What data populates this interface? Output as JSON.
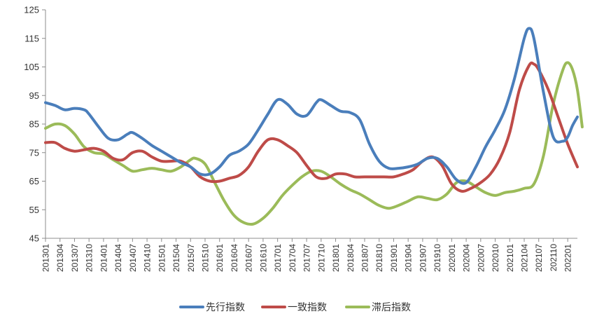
{
  "chart_data": {
    "type": "line",
    "title": "",
    "xlabel": "",
    "ylabel": "",
    "ylim": [
      45,
      125
    ],
    "yticks": [
      45,
      55,
      65,
      75,
      85,
      95,
      105,
      115,
      125
    ],
    "grid": false,
    "legend_position": "bottom",
    "x_tick_labels": [
      "201301",
      "201304",
      "201307",
      "201310",
      "201401",
      "201404",
      "201407",
      "201410",
      "201501",
      "201504",
      "201507",
      "201510",
      "201601",
      "201604",
      "201607",
      "201610",
      "201701",
      "201704",
      "201707",
      "201710",
      "201801",
      "201804",
      "201807",
      "201810",
      "201901",
      "201904",
      "201907",
      "201910",
      "202001",
      "202004",
      "202007",
      "202010",
      "202101",
      "202104",
      "202107",
      "202110",
      "202201"
    ],
    "x_start": "2013-01",
    "x_end": "2022-03",
    "series": [
      {
        "name": "先行指数",
        "color": "#4a7ebb",
        "points": [
          [
            "2013-01",
            92.5
          ],
          [
            "2013-03",
            91.5
          ],
          [
            "2013-05",
            90.0
          ],
          [
            "2013-07",
            90.5
          ],
          [
            "2013-09",
            90.0
          ],
          [
            "2013-10",
            88.5
          ],
          [
            "2013-12",
            84.0
          ],
          [
            "2014-02",
            80.0
          ],
          [
            "2014-04",
            79.5
          ],
          [
            "2014-06",
            81.5
          ],
          [
            "2014-07",
            82.0
          ],
          [
            "2014-09",
            80.0
          ],
          [
            "2014-11",
            77.5
          ],
          [
            "2015-01",
            75.5
          ],
          [
            "2015-03",
            73.5
          ],
          [
            "2015-05",
            71.5
          ],
          [
            "2015-07",
            70.0
          ],
          [
            "2015-09",
            67.5
          ],
          [
            "2015-11",
            67.5
          ],
          [
            "2016-01",
            70.0
          ],
          [
            "2016-03",
            74.0
          ],
          [
            "2016-05",
            75.5
          ],
          [
            "2016-07",
            78.0
          ],
          [
            "2016-09",
            83.0
          ],
          [
            "2016-11",
            88.5
          ],
          [
            "2017-01",
            93.5
          ],
          [
            "2017-03",
            92.0
          ],
          [
            "2017-05",
            88.5
          ],
          [
            "2017-07",
            88.0
          ],
          [
            "2017-09",
            92.5
          ],
          [
            "2017-10",
            93.5
          ],
          [
            "2017-12",
            91.5
          ],
          [
            "2018-02",
            89.5
          ],
          [
            "2018-04",
            89.0
          ],
          [
            "2018-06",
            86.5
          ],
          [
            "2018-08",
            78.0
          ],
          [
            "2018-10",
            72.0
          ],
          [
            "2018-12",
            69.5
          ],
          [
            "2019-02",
            69.5
          ],
          [
            "2019-04",
            70.0
          ],
          [
            "2019-06",
            71.0
          ],
          [
            "2019-08",
            73.0
          ],
          [
            "2019-10",
            73.0
          ],
          [
            "2019-12",
            70.0
          ],
          [
            "2020-02",
            65.5
          ],
          [
            "2020-04",
            64.5
          ],
          [
            "2020-06",
            70.0
          ],
          [
            "2020-08",
            77.0
          ],
          [
            "2020-10",
            83.0
          ],
          [
            "2020-12",
            90.0
          ],
          [
            "2021-02",
            101.0
          ],
          [
            "2021-04",
            115.0
          ],
          [
            "2021-05",
            118.5
          ],
          [
            "2021-06",
            115.0
          ],
          [
            "2021-08",
            96.0
          ],
          [
            "2021-10",
            80.5
          ],
          [
            "2021-12",
            79.0
          ],
          [
            "2022-01",
            80.5
          ],
          [
            "2022-02",
            84.5
          ],
          [
            "2022-03",
            87.5
          ]
        ]
      },
      {
        "name": "一致指数",
        "color": "#be4b48",
        "points": [
          [
            "2013-01",
            78.5
          ],
          [
            "2013-03",
            78.5
          ],
          [
            "2013-05",
            76.5
          ],
          [
            "2013-07",
            75.5
          ],
          [
            "2013-09",
            76.0
          ],
          [
            "2013-11",
            76.5
          ],
          [
            "2014-01",
            75.5
          ],
          [
            "2014-03",
            73.0
          ],
          [
            "2014-05",
            72.5
          ],
          [
            "2014-07",
            75.0
          ],
          [
            "2014-09",
            75.5
          ],
          [
            "2014-11",
            73.5
          ],
          [
            "2015-01",
            72.0
          ],
          [
            "2015-03",
            72.0
          ],
          [
            "2015-05",
            72.0
          ],
          [
            "2015-07",
            70.0
          ],
          [
            "2015-09",
            66.5
          ],
          [
            "2015-11",
            65.0
          ],
          [
            "2016-01",
            65.0
          ],
          [
            "2016-03",
            66.0
          ],
          [
            "2016-05",
            67.0
          ],
          [
            "2016-07",
            70.0
          ],
          [
            "2016-09",
            75.5
          ],
          [
            "2016-11",
            79.5
          ],
          [
            "2017-01",
            79.5
          ],
          [
            "2017-03",
            77.5
          ],
          [
            "2017-05",
            75.0
          ],
          [
            "2017-07",
            70.5
          ],
          [
            "2017-09",
            66.5
          ],
          [
            "2017-11",
            66.0
          ],
          [
            "2018-01",
            67.5
          ],
          [
            "2018-03",
            67.5
          ],
          [
            "2018-05",
            66.5
          ],
          [
            "2018-07",
            66.5
          ],
          [
            "2018-09",
            66.5
          ],
          [
            "2018-11",
            66.5
          ],
          [
            "2019-01",
            66.5
          ],
          [
            "2019-03",
            67.5
          ],
          [
            "2019-05",
            69.0
          ],
          [
            "2019-07",
            72.0
          ],
          [
            "2019-09",
            73.5
          ],
          [
            "2019-11",
            70.5
          ],
          [
            "2020-01",
            64.0
          ],
          [
            "2020-03",
            61.5
          ],
          [
            "2020-05",
            62.5
          ],
          [
            "2020-07",
            64.5
          ],
          [
            "2020-09",
            67.5
          ],
          [
            "2020-11",
            73.0
          ],
          [
            "2021-01",
            82.0
          ],
          [
            "2021-03",
            97.0
          ],
          [
            "2021-05",
            105.5
          ],
          [
            "2021-06",
            106.0
          ],
          [
            "2021-07",
            104.0
          ],
          [
            "2021-09",
            97.0
          ],
          [
            "2021-11",
            87.5
          ],
          [
            "2022-01",
            78.0
          ],
          [
            "2022-03",
            70.0
          ]
        ]
      },
      {
        "name": "滞后指数",
        "color": "#9bbb59",
        "points": [
          [
            "2013-01",
            83.5
          ],
          [
            "2013-03",
            85.0
          ],
          [
            "2013-05",
            84.5
          ],
          [
            "2013-07",
            81.5
          ],
          [
            "2013-09",
            77.0
          ],
          [
            "2013-11",
            75.0
          ],
          [
            "2014-01",
            74.5
          ],
          [
            "2014-03",
            72.5
          ],
          [
            "2014-05",
            70.5
          ],
          [
            "2014-07",
            68.5
          ],
          [
            "2014-09",
            69.0
          ],
          [
            "2014-11",
            69.5
          ],
          [
            "2015-01",
            69.0
          ],
          [
            "2015-03",
            68.5
          ],
          [
            "2015-05",
            70.0
          ],
          [
            "2015-07",
            72.5
          ],
          [
            "2015-08",
            73.0
          ],
          [
            "2015-10",
            71.0
          ],
          [
            "2015-12",
            64.5
          ],
          [
            "2016-02",
            58.0
          ],
          [
            "2016-04",
            53.0
          ],
          [
            "2016-06",
            50.5
          ],
          [
            "2016-08",
            50.0
          ],
          [
            "2016-10",
            52.0
          ],
          [
            "2016-12",
            55.5
          ],
          [
            "2017-02",
            60.0
          ],
          [
            "2017-04",
            63.5
          ],
          [
            "2017-06",
            66.5
          ],
          [
            "2017-08",
            68.5
          ],
          [
            "2017-10",
            68.5
          ],
          [
            "2017-12",
            66.5
          ],
          [
            "2018-02",
            64.0
          ],
          [
            "2018-04",
            62.0
          ],
          [
            "2018-06",
            60.5
          ],
          [
            "2018-08",
            58.5
          ],
          [
            "2018-10",
            56.5
          ],
          [
            "2018-12",
            55.5
          ],
          [
            "2019-02",
            56.5
          ],
          [
            "2019-04",
            58.0
          ],
          [
            "2019-06",
            59.5
          ],
          [
            "2019-08",
            59.0
          ],
          [
            "2019-10",
            58.5
          ],
          [
            "2019-12",
            60.5
          ],
          [
            "2020-02",
            64.5
          ],
          [
            "2020-04",
            65.0
          ],
          [
            "2020-06",
            63.0
          ],
          [
            "2020-08",
            61.0
          ],
          [
            "2020-10",
            60.0
          ],
          [
            "2020-12",
            61.0
          ],
          [
            "2021-02",
            61.5
          ],
          [
            "2021-04",
            62.5
          ],
          [
            "2021-06",
            64.0
          ],
          [
            "2021-08",
            74.0
          ],
          [
            "2021-10",
            92.0
          ],
          [
            "2021-12",
            104.0
          ],
          [
            "2022-01",
            106.5
          ],
          [
            "2022-02",
            104.0
          ],
          [
            "2022-03",
            97.0
          ],
          [
            "2022-04",
            84.0
          ]
        ]
      }
    ]
  }
}
